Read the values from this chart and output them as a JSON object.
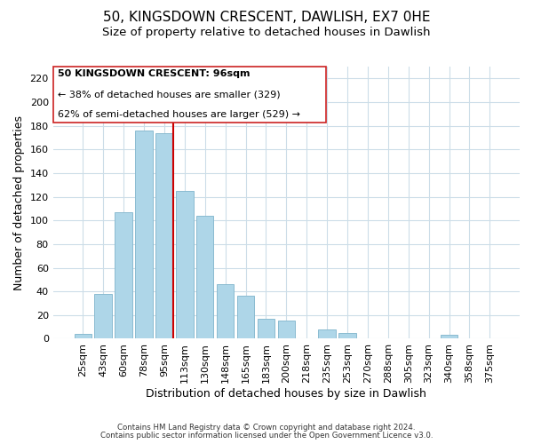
{
  "title": "50, KINGSDOWN CRESCENT, DAWLISH, EX7 0HE",
  "subtitle": "Size of property relative to detached houses in Dawlish",
  "xlabel": "Distribution of detached houses by size in Dawlish",
  "ylabel": "Number of detached properties",
  "bar_labels": [
    "25sqm",
    "43sqm",
    "60sqm",
    "78sqm",
    "95sqm",
    "113sqm",
    "130sqm",
    "148sqm",
    "165sqm",
    "183sqm",
    "200sqm",
    "218sqm",
    "235sqm",
    "253sqm",
    "270sqm",
    "288sqm",
    "305sqm",
    "323sqm",
    "340sqm",
    "358sqm",
    "375sqm"
  ],
  "bar_values": [
    4,
    38,
    107,
    176,
    174,
    125,
    104,
    46,
    36,
    17,
    15,
    0,
    8,
    5,
    0,
    0,
    0,
    0,
    3,
    0,
    0
  ],
  "bar_color": "#aed6e8",
  "bar_edge_color": "#8abbd0",
  "highlight_line_color": "#cc0000",
  "ylim": [
    0,
    230
  ],
  "yticks": [
    0,
    20,
    40,
    60,
    80,
    100,
    120,
    140,
    160,
    180,
    200,
    220
  ],
  "annotation_title": "50 KINGSDOWN CRESCENT: 96sqm",
  "annotation_line1": "← 38% of detached houses are smaller (329)",
  "annotation_line2": "62% of semi-detached houses are larger (529) →",
  "footer_line1": "Contains HM Land Registry data © Crown copyright and database right 2024.",
  "footer_line2": "Contains public sector information licensed under the Open Government Licence v3.0.",
  "background_color": "#ffffff",
  "grid_color": "#ccdde8",
  "title_fontsize": 11,
  "subtitle_fontsize": 9.5,
  "axis_fontsize": 9,
  "tick_fontsize": 8,
  "annot_fontsize": 8
}
